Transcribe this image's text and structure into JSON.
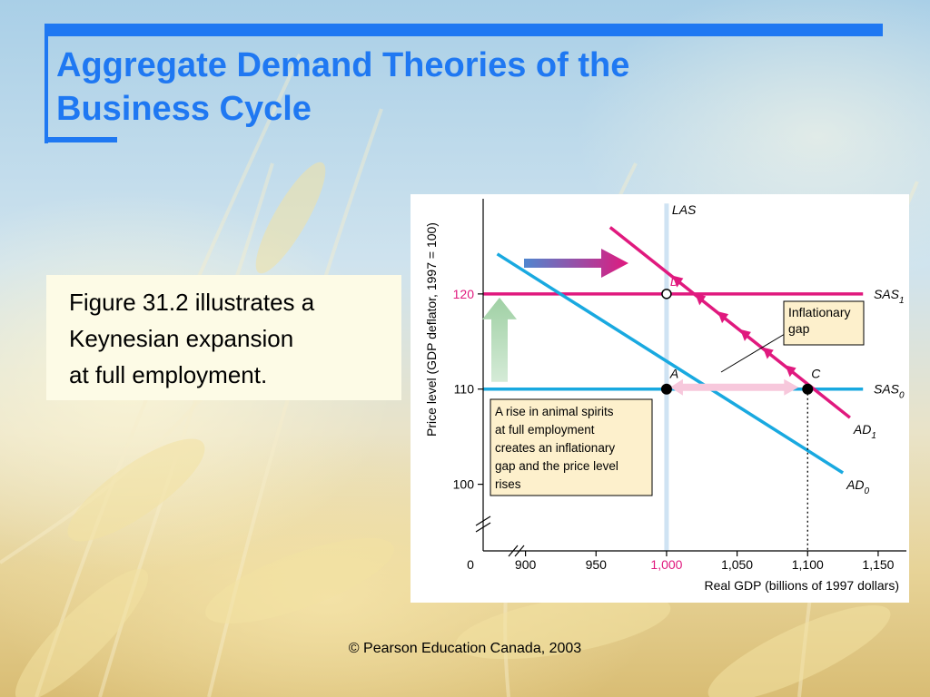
{
  "slide": {
    "title_line1": "Aggregate Demand Theories of the",
    "title_line2": "Business Cycle",
    "body_line1": "Figure 31.2 illustrates a",
    "body_line2": "Keynesian expansion",
    "body_line3": "at full employment.",
    "footer": "© Pearson Education Canada, 2003",
    "accent_color": "#1f78f2"
  },
  "chart_data": {
    "type": "line",
    "xlabel": "Real GDP (billions of 1997 dollars)",
    "ylabel": "Price level (GDP deflator, 1997 = 100)",
    "xlim": [
      870,
      1170
    ],
    "ylim": [
      93,
      130
    ],
    "x_origin_label": "0",
    "x_ticks": [
      {
        "value": 900,
        "label": "900"
      },
      {
        "value": 950,
        "label": "950"
      },
      {
        "value": 1000,
        "label": "1,000"
      },
      {
        "value": 1050,
        "label": "1,050"
      },
      {
        "value": 1100,
        "label": "1,100"
      },
      {
        "value": 1150,
        "label": "1,150"
      }
    ],
    "y_ticks": [
      {
        "value": 100,
        "label": "100"
      },
      {
        "value": 110,
        "label": "110"
      },
      {
        "value": 120,
        "label": "120"
      }
    ],
    "highlight_x": 1000,
    "highlight_y": 120,
    "series": [
      {
        "name": "LAS",
        "points": [
          [
            1000,
            129.5
          ],
          [
            1000,
            93
          ]
        ],
        "color": "#cfe3f3"
      },
      {
        "name": "SAS1",
        "points": [
          [
            1000,
            120
          ],
          [
            1165,
            120
          ]
        ],
        "color": "#e0197e"
      },
      {
        "name": "SAS0",
        "points": [
          [
            1000,
            110
          ],
          [
            1165,
            110
          ]
        ],
        "color": "#19a9e0"
      },
      {
        "name": "AD0",
        "points": [
          [
            880,
            124.2
          ],
          [
            1125,
            101.2
          ]
        ],
        "color": "#19a9e0"
      },
      {
        "name": "AD1",
        "points": [
          [
            960,
            127.0
          ],
          [
            1130,
            107.0
          ]
        ],
        "color": "#e0197e"
      }
    ],
    "points": [
      {
        "label": "A",
        "x": 1000,
        "y": 110
      },
      {
        "label": "C",
        "x": 1100,
        "y": 110
      },
      {
        "label": "D",
        "x": 1000,
        "y": 120
      }
    ],
    "annotations": {
      "inflationary_gap": "Inflationary\ngap",
      "explanation": "A rise in animal spirits\nat full employment\ncreates an inflationary\ngap and the price level\nrises"
    }
  }
}
